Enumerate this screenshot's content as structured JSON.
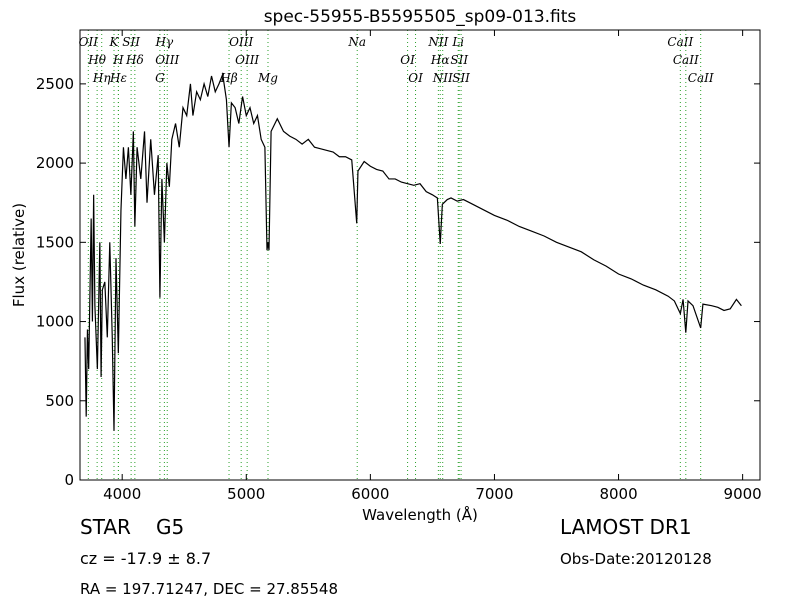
{
  "chart_data": {
    "type": "line",
    "title": "spec-55955-B5595505_sp09-013.fits",
    "xlabel": "Wavelength (Å)",
    "ylabel": "Flux (relative)",
    "xlim": [
      3660,
      9140
    ],
    "ylim": [
      0,
      2840
    ],
    "xticks": [
      4000,
      5000,
      6000,
      7000,
      8000,
      9000
    ],
    "yticks": [
      0,
      500,
      1000,
      1500,
      2000,
      2500
    ],
    "x": [
      3700,
      3710,
      3720,
      3730,
      3750,
      3760,
      3770,
      3780,
      3800,
      3820,
      3830,
      3840,
      3860,
      3880,
      3900,
      3920,
      3934,
      3950,
      3969,
      3990,
      4010,
      4030,
      4050,
      4070,
      4090,
      4102,
      4120,
      4150,
      4180,
      4200,
      4230,
      4260,
      4290,
      4304,
      4320,
      4340,
      4360,
      4380,
      4400,
      4430,
      4460,
      4490,
      4520,
      4550,
      4570,
      4600,
      4630,
      4660,
      4690,
      4720,
      4750,
      4780,
      4810,
      4840,
      4861,
      4880,
      4910,
      4940,
      4970,
      5000,
      5030,
      5060,
      5090,
      5120,
      5150,
      5167,
      5175,
      5183,
      5200,
      5250,
      5300,
      5350,
      5400,
      5450,
      5500,
      5550,
      5600,
      5650,
      5700,
      5750,
      5800,
      5850,
      5890,
      5900,
      5950,
      6000,
      6050,
      6100,
      6150,
      6200,
      6250,
      6300,
      6350,
      6400,
      6450,
      6500,
      6540,
      6563,
      6580,
      6620,
      6650,
      6700,
      6750,
      6800,
      6900,
      7000,
      7100,
      7200,
      7300,
      7400,
      7500,
      7600,
      7700,
      7800,
      7900,
      8000,
      8100,
      8200,
      8300,
      8400,
      8450,
      8498,
      8520,
      8542,
      8560,
      8600,
      8662,
      8680,
      8750,
      8800,
      8850,
      8900,
      8950,
      8990
    ],
    "series": [
      {
        "color": "#000000",
        "values": [
          900,
          400,
          950,
          700,
          1650,
          1000,
          1800,
          1100,
          700,
          1500,
          650,
          1200,
          1250,
          900,
          1500,
          900,
          310,
          1400,
          800,
          1700,
          2100,
          1900,
          2100,
          1800,
          2200,
          1600,
          2100,
          1900,
          2200,
          1750,
          2150,
          1800,
          2050,
          1150,
          1900,
          1500,
          2000,
          1850,
          2150,
          2250,
          2100,
          2350,
          2300,
          2500,
          2300,
          2450,
          2400,
          2500,
          2420,
          2550,
          2450,
          2500,
          2560,
          2400,
          2100,
          2380,
          2350,
          2250,
          2420,
          2300,
          2350,
          2250,
          2300,
          2150,
          2100,
          1450,
          1500,
          1450,
          2200,
          2280,
          2200,
          2170,
          2150,
          2120,
          2150,
          2100,
          2090,
          2080,
          2070,
          2040,
          2040,
          2020,
          1620,
          1950,
          2010,
          1980,
          1960,
          1950,
          1900,
          1900,
          1880,
          1870,
          1860,
          1870,
          1820,
          1800,
          1780,
          1490,
          1740,
          1770,
          1780,
          1760,
          1770,
          1750,
          1710,
          1670,
          1640,
          1600,
          1570,
          1540,
          1500,
          1470,
          1440,
          1390,
          1350,
          1300,
          1270,
          1230,
          1200,
          1160,
          1130,
          1050,
          1140,
          930,
          1130,
          1100,
          960,
          1110,
          1100,
          1090,
          1070,
          1080,
          1140,
          1100
        ]
      }
    ],
    "line_color": "#2ca02c",
    "lines": [
      {
        "wavelength": 3727,
        "label": "OII"
      },
      {
        "wavelength": 3798,
        "label": "Hθ"
      },
      {
        "wavelength": 3835,
        "label": "Hη"
      },
      {
        "wavelength": 3934,
        "label": "K"
      },
      {
        "wavelength": 3969,
        "label": "H"
      },
      {
        "wavelength": 3970,
        "label": "Hε"
      },
      {
        "wavelength": 4072,
        "label": "SII"
      },
      {
        "wavelength": 4102,
        "label": "Hδ"
      },
      {
        "wavelength": 4304,
        "label": "G"
      },
      {
        "wavelength": 4340,
        "label": "Hγ"
      },
      {
        "wavelength": 4363,
        "label": "OIII"
      },
      {
        "wavelength": 4861,
        "label": "Hβ"
      },
      {
        "wavelength": 4959,
        "label": "OIII"
      },
      {
        "wavelength": 5007,
        "label": "OIII"
      },
      {
        "wavelength": 5175,
        "label": "Mg"
      },
      {
        "wavelength": 5894,
        "label": "Na"
      },
      {
        "wavelength": 6300,
        "label": "OI"
      },
      {
        "wavelength": 6364,
        "label": "OI"
      },
      {
        "wavelength": 6548,
        "label": "NII"
      },
      {
        "wavelength": 6563,
        "label": "Hα"
      },
      {
        "wavelength": 6583,
        "label": "NII"
      },
      {
        "wavelength": 6708,
        "label": "Li"
      },
      {
        "wavelength": 6716,
        "label": "SII"
      },
      {
        "wavelength": 6731,
        "label": "SII"
      },
      {
        "wavelength": 8498,
        "label": "CaII"
      },
      {
        "wavelength": 8542,
        "label": "CaII"
      },
      {
        "wavelength": 8662,
        "label": "CaII"
      }
    ],
    "info": {
      "object_class": "STAR",
      "subclass": "G5",
      "redshift": "cz = -17.9 ± 8.7",
      "survey": "LAMOST DR1",
      "obs_date": "Obs-Date:20120128",
      "coords": "RA = 197.71247, DEC = 27.85548"
    }
  }
}
